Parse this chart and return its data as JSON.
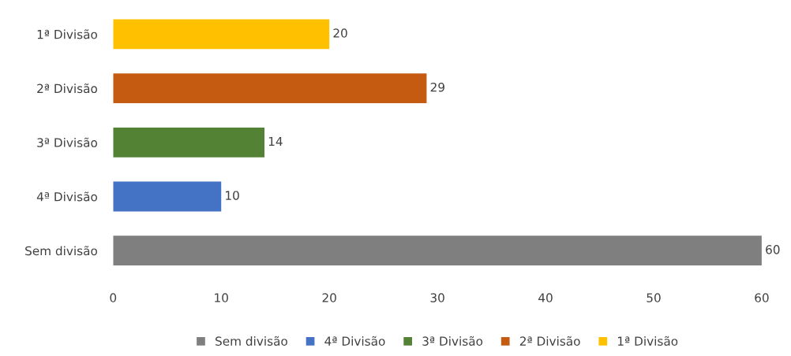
{
  "chart_data": {
    "type": "bar",
    "orientation": "horizontal",
    "categories": [
      "1ª Divisão",
      "2ª Divisão",
      "3ª Divisão",
      "4ª Divisão",
      "Sem divisão"
    ],
    "series": [
      {
        "name": "Sem divisão",
        "color": "#7f7f7f",
        "values": [
          null,
          null,
          null,
          null,
          60
        ]
      },
      {
        "name": "4ª Divisão",
        "color": "#4472c4",
        "values": [
          null,
          null,
          null,
          10,
          null
        ]
      },
      {
        "name": "3ª Divisão",
        "color": "#548235",
        "values": [
          null,
          null,
          14,
          null,
          null
        ]
      },
      {
        "name": "2ª Divisão",
        "color": "#c55a11",
        "values": [
          null,
          29,
          null,
          null,
          null
        ]
      },
      {
        "name": "1ª Divisão",
        "color": "#ffc000",
        "values": [
          20,
          null,
          null,
          null,
          null
        ]
      }
    ],
    "xlim": [
      0,
      60
    ],
    "xticks": [
      0,
      10,
      20,
      30,
      40,
      50,
      60
    ],
    "data_labels": true,
    "legend": "bottom"
  }
}
